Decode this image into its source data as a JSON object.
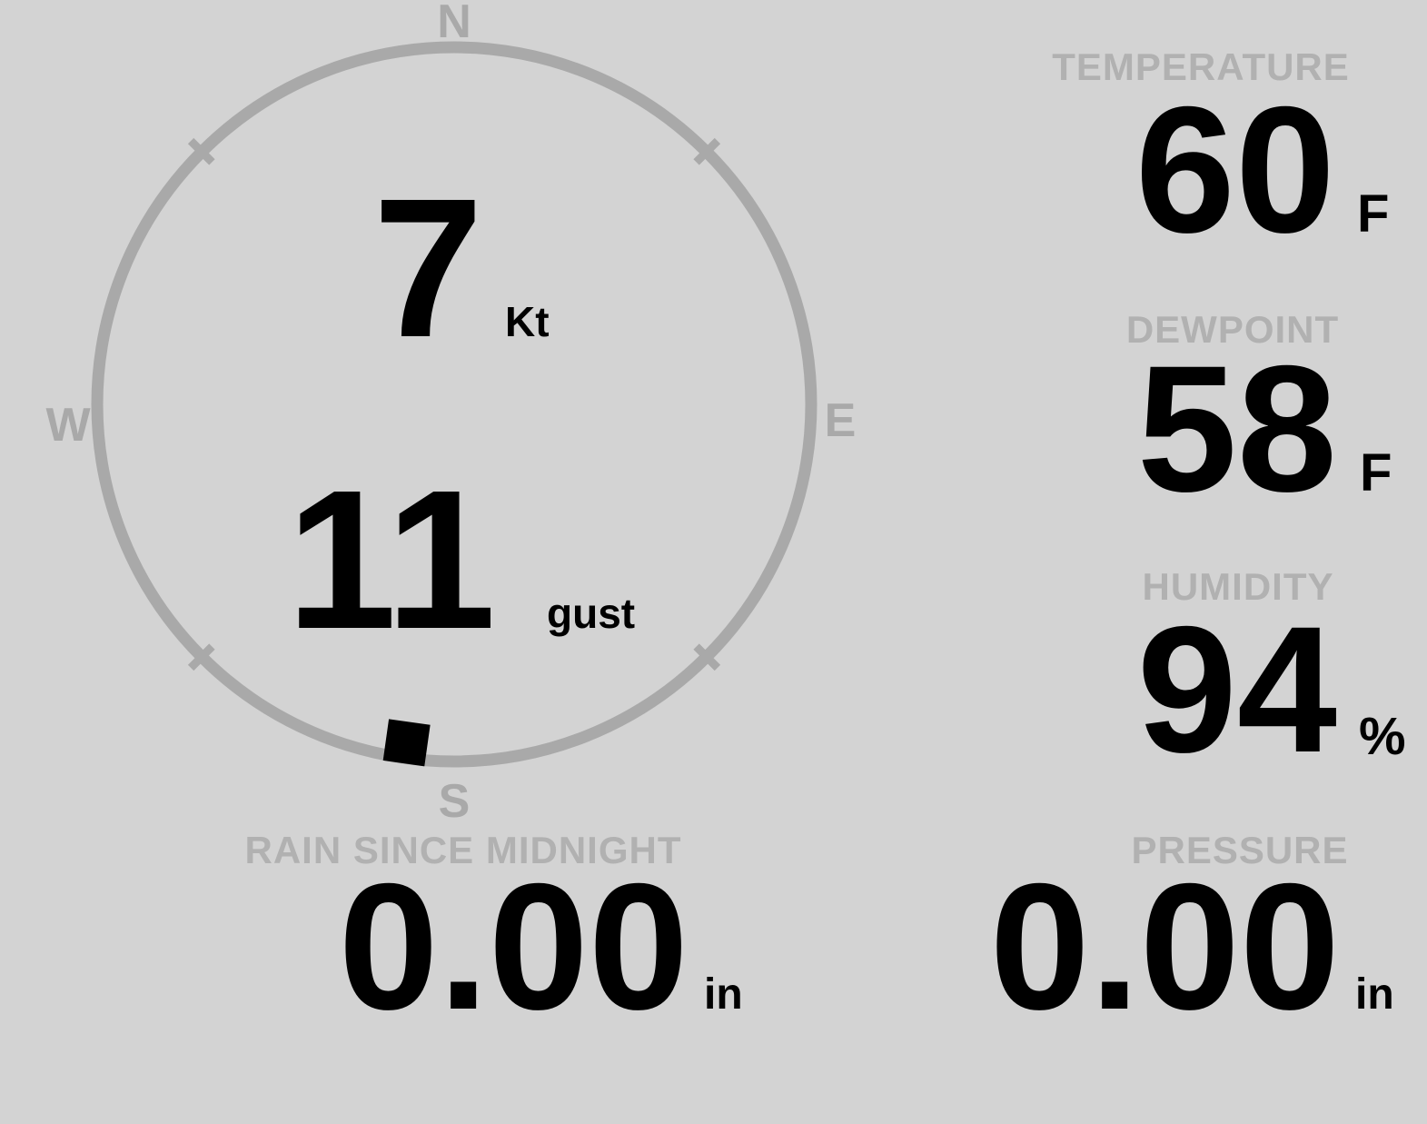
{
  "colors": {
    "background": "#d3d3d3",
    "compass": "#a9a9a9",
    "label": "#b1b1b1",
    "value": "#000000"
  },
  "compass": {
    "cardinals": {
      "north": "N",
      "east": "E",
      "south": "S",
      "west": "W"
    },
    "wind_speed": {
      "value": "7",
      "unit": "Kt"
    },
    "wind_gust": {
      "value": "11",
      "unit": "gust"
    },
    "wind_direction_deg": 188
  },
  "metrics": {
    "temperature": {
      "label": "TEMPERATURE",
      "value": "60",
      "unit": "F"
    },
    "dewpoint": {
      "label": "DEWPOINT",
      "value": "58",
      "unit": "F"
    },
    "humidity": {
      "label": "HUMIDITY",
      "value": "94",
      "unit": "%"
    },
    "rain": {
      "label": "RAIN SINCE MIDNIGHT",
      "value": "0.00",
      "unit": "in"
    },
    "pressure": {
      "label": "PRESSURE",
      "value": "0.00",
      "unit": "in"
    }
  }
}
